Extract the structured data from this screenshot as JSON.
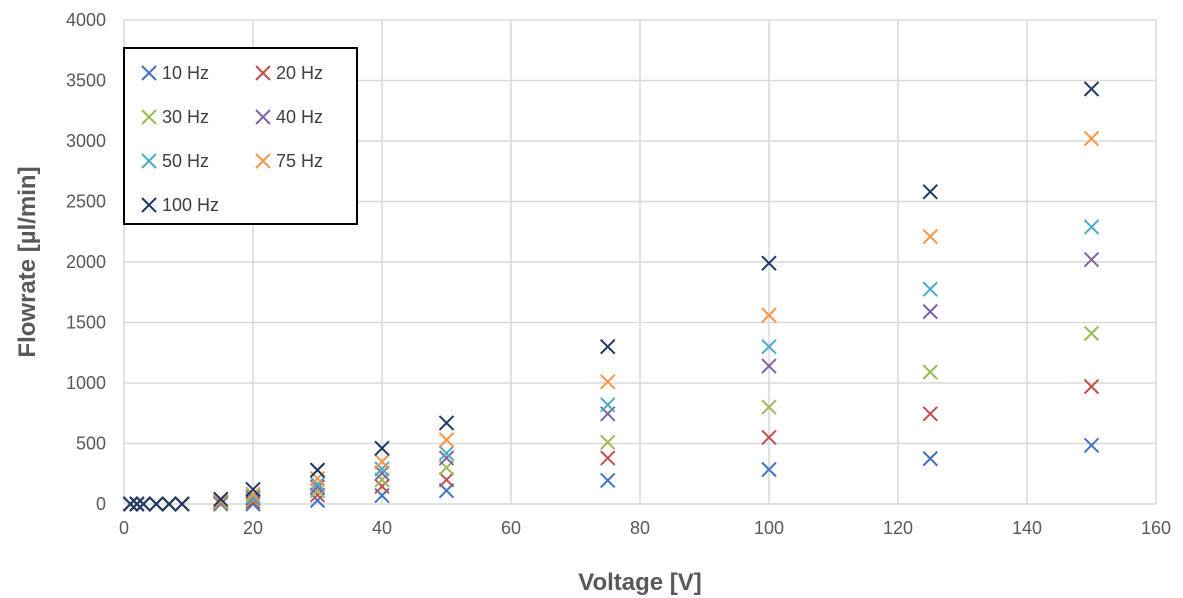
{
  "chart_data": {
    "type": "scatter",
    "title": "",
    "xlabel": "Voltage [V]",
    "ylabel": "Flowrate [µl/min]",
    "xlim": [
      0,
      160
    ],
    "ylim": [
      0,
      4000
    ],
    "xticks": [
      0,
      20,
      40,
      60,
      80,
      100,
      120,
      140,
      160
    ],
    "yticks": [
      0,
      500,
      1000,
      1500,
      2000,
      2500,
      3000,
      3500,
      4000
    ],
    "grid": true,
    "legend_position": "top-left",
    "marker": "x",
    "series": [
      {
        "name": "10 Hz",
        "color": "#4472C4",
        "points": [
          [
            1,
            0
          ],
          [
            2,
            0
          ],
          [
            3,
            0
          ],
          [
            5,
            0
          ],
          [
            7,
            0
          ],
          [
            9,
            0
          ],
          [
            15,
            0
          ],
          [
            20,
            0
          ],
          [
            30,
            30
          ],
          [
            40,
            70
          ],
          [
            50,
            110
          ],
          [
            75,
            195
          ],
          [
            100,
            285
          ],
          [
            125,
            375
          ],
          [
            150,
            485
          ]
        ]
      },
      {
        "name": "20 Hz",
        "color": "#C0504D",
        "points": [
          [
            1,
            0
          ],
          [
            2,
            0
          ],
          [
            3,
            0
          ],
          [
            5,
            0
          ],
          [
            7,
            0
          ],
          [
            9,
            0
          ],
          [
            15,
            5
          ],
          [
            20,
            20
          ],
          [
            30,
            75
          ],
          [
            40,
            145
          ],
          [
            50,
            200
          ],
          [
            75,
            380
          ],
          [
            100,
            550
          ],
          [
            125,
            745
          ],
          [
            150,
            970
          ]
        ]
      },
      {
        "name": "30 Hz",
        "color": "#9BBB59",
        "points": [
          [
            1,
            0
          ],
          [
            2,
            0
          ],
          [
            3,
            0
          ],
          [
            5,
            0
          ],
          [
            7,
            0
          ],
          [
            9,
            0
          ],
          [
            15,
            10
          ],
          [
            20,
            35
          ],
          [
            30,
            110
          ],
          [
            40,
            200
          ],
          [
            50,
            300
          ],
          [
            75,
            510
          ],
          [
            100,
            800
          ],
          [
            125,
            1090
          ],
          [
            150,
            1410
          ]
        ]
      },
      {
        "name": "40 Hz",
        "color": "#8064A2",
        "points": [
          [
            1,
            0
          ],
          [
            2,
            0
          ],
          [
            3,
            0
          ],
          [
            5,
            0
          ],
          [
            7,
            0
          ],
          [
            9,
            0
          ],
          [
            15,
            15
          ],
          [
            20,
            50
          ],
          [
            30,
            140
          ],
          [
            40,
            255
          ],
          [
            50,
            380
          ],
          [
            75,
            745
          ],
          [
            100,
            1140
          ],
          [
            125,
            1590
          ],
          [
            150,
            2020
          ]
        ]
      },
      {
        "name": "50 Hz",
        "color": "#4BACC6",
        "points": [
          [
            1,
            0
          ],
          [
            2,
            0
          ],
          [
            3,
            0
          ],
          [
            5,
            0
          ],
          [
            7,
            0
          ],
          [
            9,
            0
          ],
          [
            15,
            20
          ],
          [
            20,
            60
          ],
          [
            30,
            165
          ],
          [
            40,
            290
          ],
          [
            50,
            420
          ],
          [
            75,
            820
          ],
          [
            100,
            1300
          ],
          [
            125,
            1775
          ],
          [
            150,
            2290
          ]
        ]
      },
      {
        "name": "75 Hz",
        "color": "#F79646",
        "points": [
          [
            1,
            0
          ],
          [
            2,
            0
          ],
          [
            3,
            0
          ],
          [
            5,
            0
          ],
          [
            7,
            0
          ],
          [
            9,
            0
          ],
          [
            15,
            25
          ],
          [
            20,
            80
          ],
          [
            30,
            210
          ],
          [
            40,
            350
          ],
          [
            50,
            530
          ],
          [
            75,
            1010
          ],
          [
            100,
            1560
          ],
          [
            125,
            2210
          ],
          [
            150,
            3020
          ]
        ]
      },
      {
        "name": "100 Hz",
        "color": "#1F3864",
        "points": [
          [
            1,
            0
          ],
          [
            2,
            0
          ],
          [
            3,
            0
          ],
          [
            5,
            0
          ],
          [
            7,
            0
          ],
          [
            9,
            0
          ],
          [
            15,
            40
          ],
          [
            20,
            120
          ],
          [
            30,
            280
          ],
          [
            40,
            460
          ],
          [
            50,
            670
          ],
          [
            75,
            1300
          ],
          [
            100,
            1990
          ],
          [
            125,
            2580
          ],
          [
            150,
            3430
          ]
        ]
      }
    ]
  },
  "colors": {
    "gridline": "#D9D9D9",
    "tick_text": "#595959",
    "legend_border": "#000000"
  }
}
